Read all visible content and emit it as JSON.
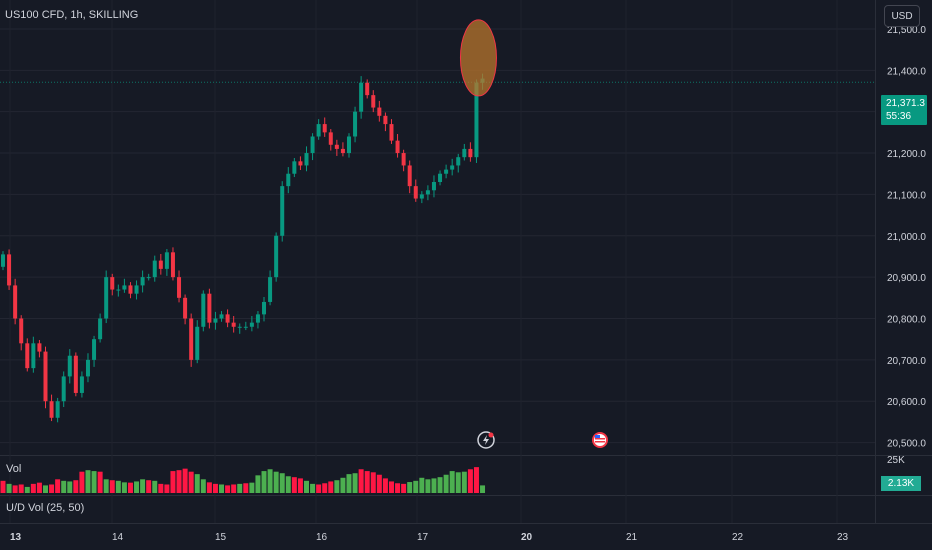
{
  "header": {
    "symbol_title": "US100 CFD, 1h, SKILLING",
    "currency": "USD"
  },
  "price_tag": {
    "price": "21,371.3",
    "countdown": "55:36"
  },
  "volume_pane": {
    "label": "Vol",
    "axis_label": "25K",
    "current_value": "2.13K"
  },
  "indicator_pane": {
    "label": "U/D Vol (25, 50)"
  },
  "icons": [
    "flash-icon",
    "us-flag-icon"
  ],
  "colors": {
    "up": "#089981",
    "down": "#f23645",
    "vol_up": "#4caf50",
    "vol_down": "#ff1744",
    "background": "#161a25",
    "highlight": "#b8762c"
  },
  "chart_data": {
    "type": "candlestick",
    "title": "US100 CFD, 1h, SKILLING",
    "xlabel": "",
    "ylabel": "",
    "ylim": [
      20470,
      21570
    ],
    "y_ticks": [
      "21,500.0",
      "21,400.0",
      "21,300.0",
      "21,200.0",
      "21,100.0",
      "21,000.0",
      "20,900.0",
      "20,800.0",
      "20,700.0",
      "20,600.0",
      "20,500.0"
    ],
    "y_tick_values": [
      21500,
      21400,
      21300,
      21200,
      21100,
      21000,
      20900,
      20800,
      20700,
      20600,
      20500
    ],
    "x_ticks": [
      "13",
      "14",
      "15",
      "16",
      "17",
      "20",
      "21",
      "22",
      "23"
    ],
    "last_price": 21371.3,
    "grid": true,
    "close": [
      20955,
      20880,
      20800,
      20740,
      20680,
      20740,
      20720,
      20600,
      20560,
      20600,
      20660,
      20710,
      20620,
      20660,
      20700,
      20750,
      20800,
      20900,
      20870,
      20870,
      20880,
      20860,
      20880,
      20900,
      20900,
      20940,
      20920,
      20960,
      20900,
      20850,
      20800,
      20700,
      20780,
      20860,
      20790,
      20800,
      20810,
      20790,
      20780,
      20780,
      20780,
      20790,
      20810,
      20840,
      20900,
      21000,
      21120,
      21150,
      21180,
      21170,
      21200,
      21240,
      21270,
      21250,
      21220,
      21210,
      21200,
      21240,
      21300,
      21370,
      21340,
      21310,
      21290,
      21270,
      21230,
      21200,
      21170,
      21120,
      21090,
      21100,
      21110,
      21130,
      21150,
      21160,
      21170,
      21190,
      21210,
      21190,
      21370,
      21380
    ],
    "volume": [
      40,
      30,
      25,
      28,
      20,
      30,
      34,
      25,
      28,
      45,
      40,
      38,
      42,
      70,
      75,
      72,
      70,
      45,
      42,
      40,
      35,
      34,
      38,
      45,
      42,
      40,
      30,
      28,
      72,
      75,
      80,
      70,
      62,
      45,
      35,
      30,
      28,
      25,
      28,
      30,
      32,
      34,
      58,
      72,
      78,
      70,
      65,
      55,
      52,
      48,
      40,
      30,
      28,
      32,
      38,
      42,
      50,
      62,
      65,
      78,
      72,
      68,
      60,
      48,
      38,
      32,
      30,
      36,
      40,
      50,
      45,
      48,
      52,
      60,
      72,
      68,
      70,
      78,
      85,
      25
    ],
    "volume_ylim": [
      0,
      115
    ],
    "volume_up": [
      false,
      true,
      false,
      false,
      true,
      false,
      false,
      true,
      false,
      false,
      true,
      true,
      false,
      false,
      true,
      true,
      false,
      true,
      false,
      true,
      true,
      false,
      true,
      true,
      false,
      true,
      false,
      false,
      false,
      false,
      false,
      false,
      true,
      true,
      false,
      false,
      true,
      false,
      false,
      true,
      false,
      true,
      true,
      true,
      true,
      true,
      true,
      true,
      false,
      false,
      true,
      true,
      false,
      false,
      false,
      true,
      true,
      true,
      true,
      false,
      false,
      false,
      false,
      false,
      false,
      false,
      false,
      true,
      true,
      true,
      true,
      true,
      true,
      true,
      true,
      true,
      true,
      false,
      false,
      true
    ]
  }
}
